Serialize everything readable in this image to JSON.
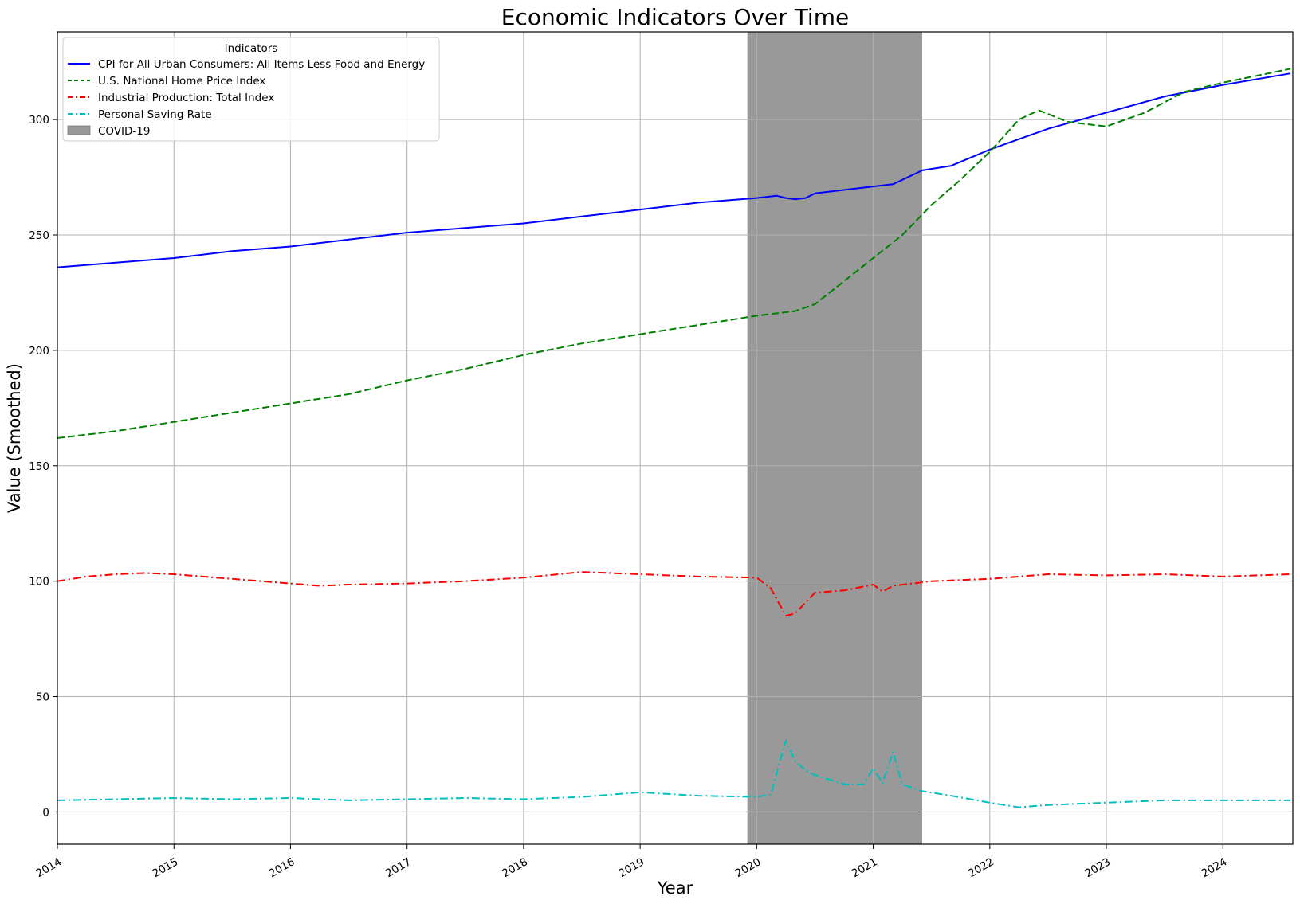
{
  "chart_data": {
    "type": "line",
    "title": "Economic Indicators Over Time",
    "xlabel": "Year",
    "ylabel": "Value (Smoothed)",
    "xlim": [
      2014.0,
      2024.6
    ],
    "ylim": [
      -14,
      338
    ],
    "x_ticks": [
      2014,
      2015,
      2016,
      2017,
      2018,
      2019,
      2020,
      2021,
      2022,
      2023,
      2024
    ],
    "x_tick_labels": [
      "2014",
      "2015",
      "2016",
      "2017",
      "2018",
      "2019",
      "2020",
      "2021",
      "2022",
      "2023",
      "2024"
    ],
    "y_ticks": [
      0,
      50,
      100,
      150,
      200,
      250,
      300
    ],
    "y_tick_labels": [
      "0",
      "50",
      "100",
      "150",
      "200",
      "250",
      "300"
    ],
    "grid": true,
    "legend": {
      "title": "Indicators",
      "placement": "top-left"
    },
    "shaded_regions": [
      {
        "label": "COVID-19",
        "x_start": 2019.92,
        "x_end": 2021.42,
        "color": "#808080"
      }
    ],
    "series": [
      {
        "name": "CPI for All Urban Consumers: All Items Less Food and Energy",
        "color": "#0000ff",
        "style": "solid",
        "x": [
          2014.0,
          2014.5,
          2015.0,
          2015.5,
          2016.0,
          2016.5,
          2017.0,
          2017.5,
          2018.0,
          2018.5,
          2019.0,
          2019.5,
          2020.0,
          2020.17,
          2020.25,
          2020.33,
          2020.42,
          2020.5,
          2021.0,
          2021.17,
          2021.42,
          2021.67,
          2022.0,
          2022.5,
          2023.0,
          2023.5,
          2024.0,
          2024.58
        ],
        "y": [
          236,
          238,
          240,
          243,
          245,
          248,
          251,
          253,
          255,
          258,
          261,
          264,
          266,
          267,
          266,
          265.5,
          266,
          268,
          271,
          272,
          278,
          280,
          287,
          296,
          303,
          310,
          315,
          320
        ]
      },
      {
        "name": "U.S. National Home Price Index",
        "color": "#008000",
        "style": "dashed",
        "x": [
          2014.0,
          2014.5,
          2015.0,
          2015.5,
          2016.0,
          2016.5,
          2017.0,
          2017.5,
          2018.0,
          2018.5,
          2019.0,
          2019.5,
          2020.0,
          2020.33,
          2020.5,
          2020.75,
          2021.0,
          2021.25,
          2021.5,
          2021.75,
          2022.0,
          2022.25,
          2022.42,
          2022.67,
          2023.0,
          2023.33,
          2023.67,
          2024.0,
          2024.58
        ],
        "y": [
          162,
          165,
          169,
          173,
          177,
          181,
          187,
          192,
          198,
          203,
          207,
          211,
          215,
          217,
          220,
          230,
          240,
          250,
          263,
          274,
          286,
          300,
          304,
          299,
          297,
          303,
          312,
          316,
          322
        ]
      },
      {
        "name": "Industrial Production: Total Index",
        "color": "#ff0000",
        "style": "dashdot",
        "x": [
          2014.0,
          2014.25,
          2014.5,
          2014.75,
          2015.0,
          2015.5,
          2016.0,
          2016.25,
          2016.5,
          2017.0,
          2017.5,
          2018.0,
          2018.5,
          2019.0,
          2019.5,
          2020.0,
          2020.12,
          2020.25,
          2020.33,
          2020.5,
          2020.75,
          2021.0,
          2021.08,
          2021.17,
          2021.5,
          2022.0,
          2022.5,
          2023.0,
          2023.5,
          2024.0,
          2024.58
        ],
        "y": [
          100,
          102,
          103,
          103.5,
          103,
          101,
          99,
          98,
          98.5,
          99,
          100,
          101.5,
          104,
          103,
          102,
          101.5,
          97,
          85,
          86,
          95,
          96,
          98.5,
          95.5,
          98,
          100,
          101,
          103,
          102.5,
          103,
          102,
          103
        ]
      },
      {
        "name": "Personal Saving Rate",
        "color": "#00bfbf",
        "style": "dashdot",
        "x": [
          2014.0,
          2014.5,
          2015.0,
          2015.5,
          2016.0,
          2016.5,
          2017.0,
          2017.5,
          2018.0,
          2018.5,
          2019.0,
          2019.5,
          2020.0,
          2020.12,
          2020.25,
          2020.33,
          2020.42,
          2020.5,
          2020.75,
          2020.92,
          2021.0,
          2021.08,
          2021.17,
          2021.25,
          2021.42,
          2021.67,
          2022.0,
          2022.25,
          2022.5,
          2023.0,
          2023.5,
          2024.0,
          2024.58
        ],
        "y": [
          5,
          5.5,
          6,
          5.5,
          6,
          5,
          5.5,
          6,
          5.5,
          6.5,
          8.5,
          7,
          6.5,
          7.5,
          31,
          22,
          18,
          16,
          12,
          12,
          19,
          12.5,
          26,
          12,
          9,
          7,
          4,
          2,
          3,
          4,
          5,
          5,
          5
        ]
      }
    ]
  }
}
